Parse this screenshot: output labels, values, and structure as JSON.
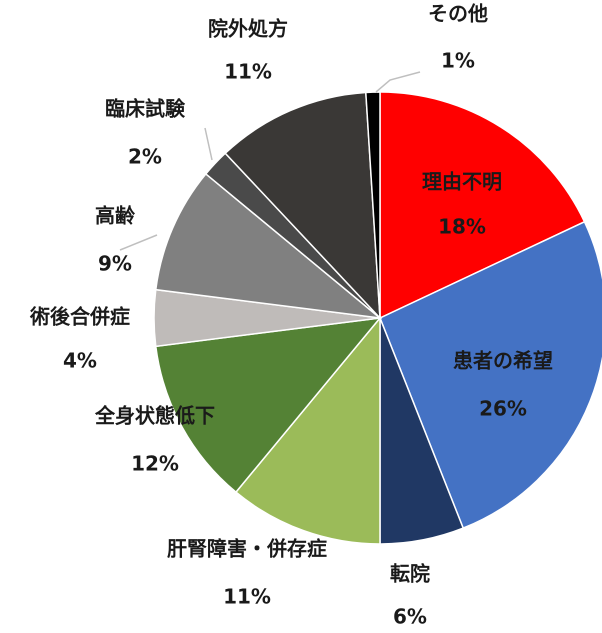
{
  "chart_data": {
    "type": "pie",
    "categories": [
      "理由不明",
      "患者の希望",
      "転院",
      "肝腎障害・併存症",
      "全身状態低下",
      "術後合併症",
      "高齢",
      "臨床試験",
      "院外処方",
      "その他"
    ],
    "values": [
      18,
      26,
      6,
      11,
      12,
      4,
      9,
      2,
      11,
      1
    ],
    "value_labels": [
      "18%",
      "26%",
      "6%",
      "11%",
      "12%",
      "4%",
      "9%",
      "2%",
      "11%",
      "1%"
    ],
    "colors": [
      "#ff0000",
      "#4472c4",
      "#203864",
      "#9bbb59",
      "#548235",
      "#bfbbb9",
      "#808080",
      "#4a4a4a",
      "#3a3836",
      "#000000"
    ]
  }
}
